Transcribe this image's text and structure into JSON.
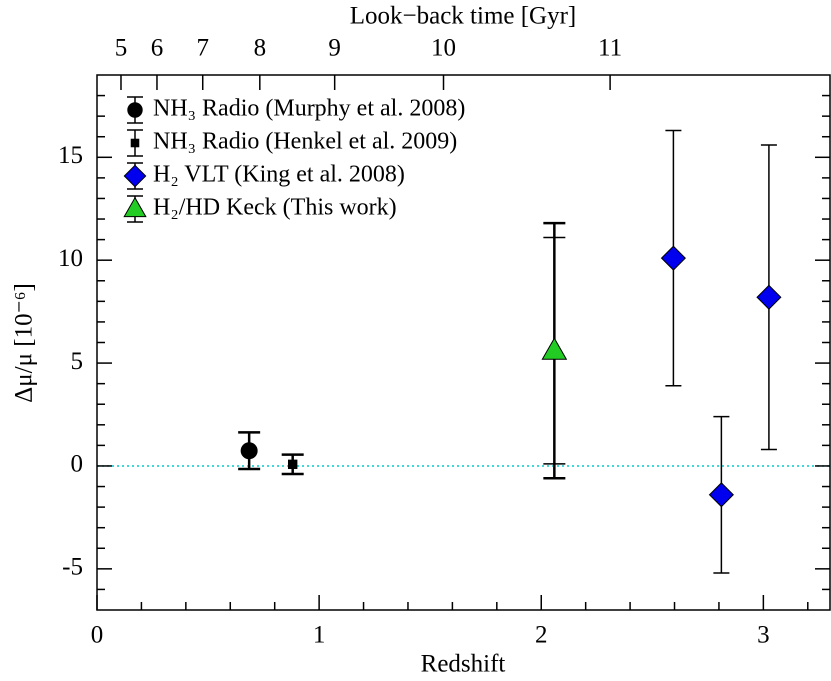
{
  "chart_data": {
    "type": "errorbar",
    "xlabel": "Redshift",
    "ylabel": "Δμ/μ [10⁻⁶]",
    "x2label": "Look−back time [Gyr]",
    "xlim": [
      0,
      3.3
    ],
    "ylim": [
      -7,
      19
    ],
    "xticks": [
      0,
      1,
      2,
      3
    ],
    "xminorticks": [
      0.2,
      0.4,
      0.6,
      0.8,
      1.2,
      1.4,
      1.6,
      1.8,
      2.2,
      2.4,
      2.6,
      2.8,
      3.2
    ],
    "yticks": [
      -5,
      0,
      5,
      10,
      15
    ],
    "yminorticks": [
      -6,
      -4,
      -3,
      -2,
      -1,
      1,
      2,
      3,
      4,
      6,
      7,
      8,
      9,
      11,
      12,
      13,
      14,
      16,
      17,
      18
    ],
    "x2ticks": [
      {
        "value": 0.108,
        "label": "5"
      },
      {
        "value": 0.27,
        "label": "6"
      },
      {
        "value": 0.476,
        "label": "7"
      },
      {
        "value": 0.733,
        "label": "8"
      },
      {
        "value": 1.07,
        "label": "9"
      },
      {
        "value": 1.56,
        "label": "10"
      },
      {
        "value": 2.31,
        "label": "11"
      }
    ],
    "hline": {
      "value": 0,
      "color": "#00cccc"
    },
    "legend": "upper left",
    "series": [
      {
        "name": "NH₃ Radio (Murphy et al. 2008)",
        "marker": "circle",
        "color": "#000000",
        "thick": true,
        "x": [
          0.685
        ],
        "values": [
          0.74
        ],
        "errors": [
          0.89
        ]
      },
      {
        "name": "NH₃ Radio (Henkel et al. 2009)",
        "marker": "square",
        "color": "#000000",
        "thick": true,
        "x": [
          0.881
        ],
        "values": [
          0.08
        ],
        "errors": [
          0.47
        ]
      },
      {
        "name": "H₂ VLT (King et al. 2008)",
        "marker": "diamond",
        "color": "#0000ee",
        "thick": false,
        "x": [
          2.595,
          2.811,
          3.025
        ],
        "values": [
          10.1,
          -1.4,
          8.2
        ],
        "errors": [
          6.2,
          3.8,
          7.4
        ]
      },
      {
        "name": "H₂/HD Keck (This work)",
        "marker": "triangle",
        "color": "#22cc22",
        "thick": true,
        "x": [
          2.059
        ],
        "values": [
          5.6
        ],
        "errors": [
          6.2
        ],
        "errors_stat": [
          5.5
        ]
      }
    ]
  }
}
